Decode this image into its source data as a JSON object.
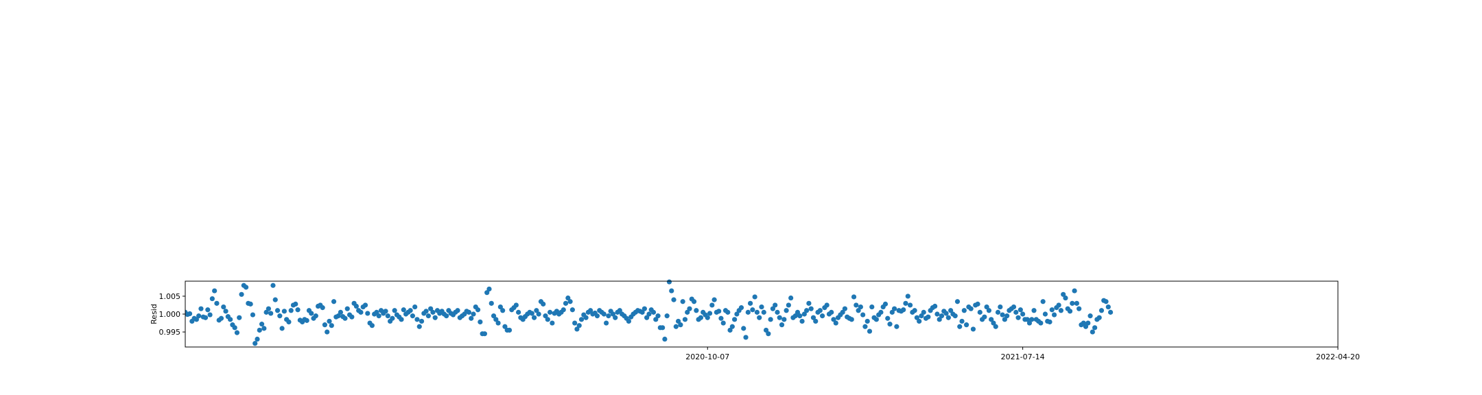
{
  "chart_data": {
    "type": "scatter",
    "title": "",
    "xlabel": "",
    "ylabel": "Resid",
    "xlim": [
      "2019-07-01",
      "2022-04-20"
    ],
    "ylim": [
      0.9908,
      1.0092
    ],
    "grid": false,
    "marker_color": "#1f77b4",
    "y_ticks": [
      {
        "value": 0.995,
        "label": "0.995"
      },
      {
        "value": 1.0,
        "label": "1.000"
      },
      {
        "value": 1.005,
        "label": "1.005"
      }
    ],
    "x_ticks": [
      {
        "value": "2020-10-07",
        "label": "2020-10-07"
      },
      {
        "value": "2021-07-14",
        "label": "2021-07-14"
      },
      {
        "value": "2022-04-20",
        "label": "2022-04-20"
      }
    ],
    "series": [
      {
        "x_start": "2019-07-01",
        "step_days": 2,
        "values": [
          1.0005,
          0.9999,
          1.0001,
          0.998,
          0.9988,
          0.9985,
          0.9995,
          1.0015,
          0.9992,
          0.999,
          1.0012,
          0.9998,
          1.0043,
          1.0065,
          1.003,
          0.9983,
          0.9988,
          1.002,
          1.0008,
          0.9993,
          0.9985,
          0.997,
          0.9962,
          0.9948,
          0.999,
          1.0055,
          1.008,
          1.0075,
          1.003,
          1.0028,
          0.9998,
          0.9918,
          0.993,
          0.9955,
          0.9972,
          0.996,
          1.0005,
          1.0015,
          1.0002,
          1.008,
          1.004,
          1.001,
          0.9995,
          0.996,
          1.0008,
          0.9985,
          0.9978,
          1.001,
          1.0025,
          1.0028,
          1.0012,
          0.9983,
          0.9978,
          0.9985,
          0.9982,
          1.001,
          1.0002,
          0.9988,
          0.9995,
          1.0022,
          1.0025,
          1.0018,
          0.997,
          0.995,
          0.998,
          0.9968,
          1.0035,
          0.9992,
          0.9995,
          1.0005,
          0.9993,
          0.9988,
          1.0015,
          0.9998,
          0.9992,
          1.003,
          1.0022,
          1.001,
          1.0005,
          1.002,
          1.0025,
          1.0002,
          0.9975,
          0.9968,
          1.0,
          1.0005,
          0.9995,
          1.001,
          1.0002,
          1.0008,
          0.9995,
          0.998,
          0.9988,
          1.001,
          0.9998,
          0.9992,
          0.9985,
          1.0012,
          1.0,
          1.0005,
          1.001,
          0.9995,
          1.002,
          0.9985,
          0.9965,
          0.998,
          1.0002,
          1.0008,
          0.9995,
          1.0015,
          1.0005,
          0.999,
          1.001,
          1.0002,
          1.0008,
          1.0,
          0.9995,
          1.001,
          1.0002,
          0.9998,
          1.0005,
          1.001,
          0.999,
          0.9995,
          1.0,
          1.0008,
          1.0005,
          0.9988,
          1.0,
          1.002,
          1.0012,
          0.9978,
          0.9945,
          0.9945,
          1.006,
          1.007,
          1.003,
          0.9995,
          0.9985,
          0.9975,
          1.002,
          1.001,
          0.9965,
          0.9955,
          0.9955,
          1.0012,
          1.0018,
          1.0025,
          1.0005,
          0.999,
          0.9985,
          0.9993,
          1.0,
          1.0005,
          1.0002,
          0.999,
          1.001,
          1.0,
          1.0035,
          1.0028,
          0.9995,
          0.9985,
          1.0005,
          0.9975,
          1.0002,
          1.0008,
          1.0,
          1.0005,
          1.0012,
          1.003,
          1.0045,
          1.0035,
          1.0012,
          0.9975,
          0.9958,
          0.9968,
          0.9985,
          0.9998,
          0.999,
          1.0005,
          1.001,
          1.0,
          1.0003,
          0.9995,
          1.001,
          1.0005,
          1.0,
          0.9975,
          0.9995,
          1.0008,
          1.0,
          0.999,
          1.0005,
          1.001,
          1.0,
          0.9995,
          0.9988,
          0.998,
          0.9992,
          1.0,
          1.0005,
          1.001,
          1.0008,
          1.0005,
          1.0015,
          0.999,
          1.0,
          1.0012,
          1.0005,
          0.9985,
          0.9995,
          0.9962,
          0.9962,
          0.993,
          0.9995,
          1.009,
          1.0065,
          1.004,
          0.9965,
          0.998,
          0.997,
          1.0035,
          0.9985,
          1.0005,
          1.0015,
          1.0042,
          1.0035,
          1.001,
          0.9985,
          0.999,
          1.0005,
          0.9998,
          0.999,
          1.0002,
          1.0025,
          1.004,
          1.0005,
          1.0008,
          0.9988,
          0.9975,
          1.001,
          1.0005,
          0.9955,
          0.9965,
          0.9985,
          1.0,
          1.001,
          1.0018,
          0.996,
          0.9935,
          1.0005,
          1.003,
          1.0012,
          1.0048,
          1.0005,
          0.999,
          1.002,
          1.0005,
          0.9955,
          0.9945,
          0.9985,
          1.0015,
          1.0025,
          1.0005,
          0.999,
          0.997,
          0.9985,
          1.001,
          1.0025,
          1.0045,
          0.999,
          0.9995,
          1.0005,
          0.9995,
          0.998,
          1.0,
          1.001,
          1.003,
          1.0015,
          0.999,
          0.998,
          1.0005,
          1.001,
          0.9995,
          1.0018,
          1.0025,
          1.0,
          1.0005,
          0.9985,
          0.9975,
          0.999,
          0.9998,
          1.0005,
          1.0015,
          0.9992,
          0.9988,
          0.9985,
          1.0048,
          1.0025,
          1.001,
          1.002,
          0.9998,
          0.9965,
          0.998,
          0.9952,
          1.002,
          0.999,
          0.9985,
          0.9998,
          1.0005,
          1.002,
          1.0028,
          0.9988,
          0.9972,
          1.0005,
          1.0015,
          0.9965,
          1.001,
          1.0008,
          1.0012,
          1.003,
          1.005,
          1.0025,
          1.0005,
          1.001,
          0.999,
          0.998,
          0.9995,
          1.0005,
          0.9988,
          0.9992,
          1.001,
          1.0018,
          1.0022,
          1.0,
          0.9985,
          0.9995,
          1.0008,
          1.0002,
          0.999,
          1.001,
          1.0,
          0.9995,
          1.0035,
          0.9965,
          0.998,
          1.001,
          0.997,
          1.002,
          1.0015,
          0.9958,
          1.0025,
          1.0028,
          1.0005,
          0.9985,
          0.9992,
          1.002,
          1.001,
          0.9985,
          0.9975,
          0.9965,
          1.0005,
          1.002,
          0.9998,
          0.9985,
          0.9995,
          1.001,
          1.0015,
          1.002,
          1.0005,
          0.999,
          1.0012,
          1.0,
          0.9985,
          0.9985,
          0.9975,
          0.9985,
          1.001,
          0.9985,
          0.998,
          0.9975,
          1.0035,
          1.0,
          0.998,
          0.9978,
          1.0012,
          0.9998,
          1.0018,
          1.0025,
          1.001,
          1.0055,
          1.0045,
          1.0015,
          1.0008,
          1.003,
          1.0065,
          1.003,
          1.0015,
          0.997,
          0.9975,
          0.9965,
          0.9975,
          0.9995,
          0.995,
          0.9962,
          0.9985,
          0.999,
          1.001,
          1.0038,
          1.0035,
          1.002,
          1.0005
        ]
      }
    ]
  }
}
